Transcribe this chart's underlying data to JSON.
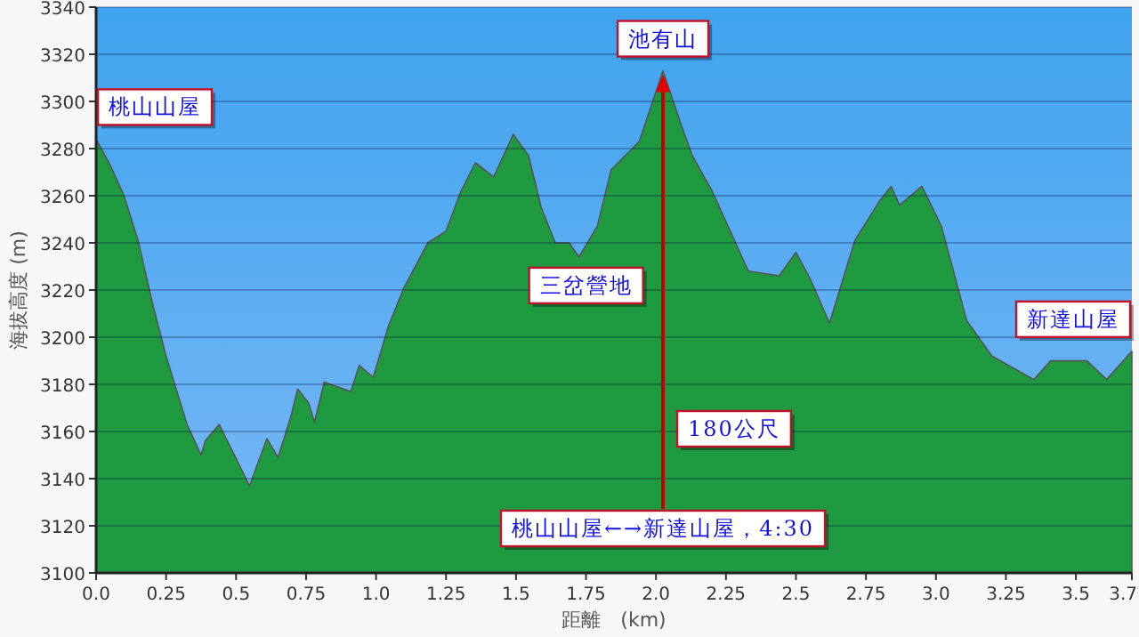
{
  "chart_data": {
    "type": "area",
    "xlabel": "距離　(km)",
    "ylabel": "海拔高度 (m)",
    "x": [
      0,
      0.05,
      0.1,
      0.15,
      0.2,
      0.25,
      0.325,
      0.375,
      0.39,
      0.44,
      0.465,
      0.548,
      0.61,
      0.65,
      0.695,
      0.72,
      0.76,
      0.78,
      0.815,
      0.91,
      0.94,
      0.99,
      1.045,
      1.1,
      1.185,
      1.25,
      1.3,
      1.355,
      1.42,
      1.49,
      1.545,
      1.59,
      1.64,
      1.69,
      1.725,
      1.79,
      1.84,
      1.94,
      2.025,
      2.09,
      2.13,
      2.2,
      2.33,
      2.44,
      2.5,
      2.55,
      2.62,
      2.71,
      2.8,
      2.84,
      2.87,
      2.95,
      3.02,
      3.11,
      3.2,
      3.35,
      3.41,
      3.54,
      3.61,
      3.7
    ],
    "series": [
      {
        "color": "#1f9a40",
        "values": [
          3284,
          3273,
          3260,
          3241,
          3215,
          3192,
          3163,
          3150,
          3156,
          3163,
          3157,
          3137,
          3157,
          3149,
          3166,
          3178,
          3172,
          3164,
          3181,
          3177,
          3188,
          3183,
          3205,
          3221,
          3240,
          3245,
          3261,
          3274,
          3268,
          3286,
          3277,
          3255,
          3240,
          3240,
          3234,
          3247,
          3271,
          3283,
          3313,
          3290,
          3277,
          3262,
          3228,
          3226,
          3236,
          3225,
          3206,
          3241,
          3258,
          3264,
          3256,
          3264,
          3247,
          3207,
          3192,
          3182,
          3190,
          3190,
          3182,
          3194
        ]
      }
    ],
    "xlim": [
      0,
      3.7
    ],
    "xticks": [
      {
        "value": 0,
        "label": "0.0"
      },
      0.25,
      {
        "value": 0.5,
        "label": "0.5"
      },
      0.75,
      {
        "value": 1,
        "label": "1.0"
      },
      1.25,
      {
        "value": 1.5,
        "label": "1.5"
      },
      1.75,
      {
        "value": 2,
        "label": "2.0"
      },
      2.25,
      {
        "value": 2.5,
        "label": "2.5"
      },
      2.75,
      {
        "value": 3,
        "label": "3.0"
      },
      3.25,
      {
        "value": 3.5,
        "label": "3.5"
      },
      {
        "value": 3.7,
        "label": "3.7"
      }
    ],
    "ylim": [
      3100,
      3340
    ],
    "yticks": [
      3100,
      3120,
      3140,
      3160,
      3180,
      3200,
      3220,
      3240,
      3260,
      3280,
      3300,
      3320,
      3340
    ],
    "grid": "y",
    "annotations": [
      {
        "text": "桃山山屋",
        "x": 0,
        "y": 3284
      },
      {
        "text": "池有山",
        "x": 2.025,
        "y": 3313
      },
      {
        "text": "三岔營地",
        "x": 1.725,
        "y": 3234
      },
      {
        "text": "新達山屋",
        "x": 3.7,
        "y": 3194
      },
      "180公尺",
      "桃山山屋←→新達山屋，4:30"
    ]
  }
}
